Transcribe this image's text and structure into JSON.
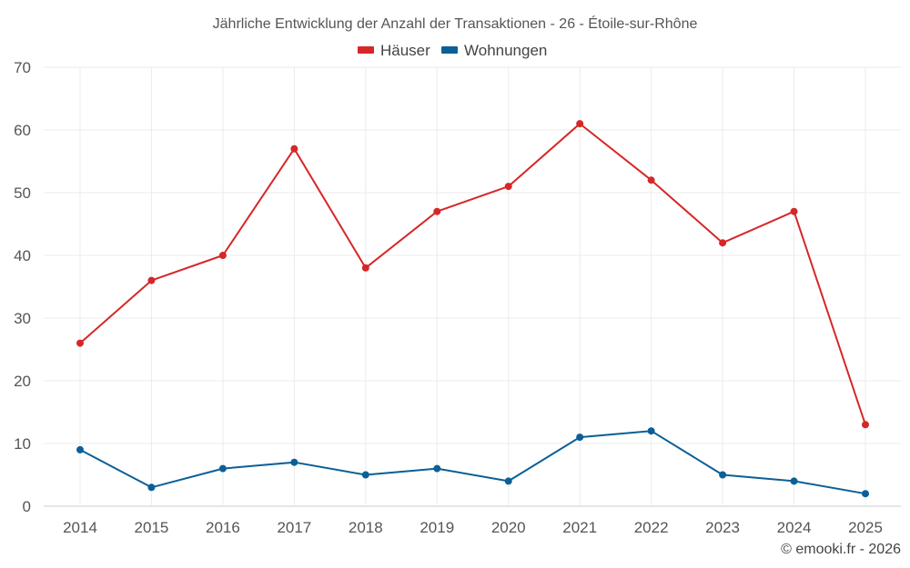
{
  "chart_data": {
    "type": "line",
    "title": "Jährliche Entwicklung der Anzahl der Transaktionen - 26 - Étoile-sur-Rhône",
    "categories": [
      "2014",
      "2015",
      "2016",
      "2017",
      "2018",
      "2019",
      "2020",
      "2021",
      "2022",
      "2023",
      "2024",
      "2025"
    ],
    "series": [
      {
        "name": "Häuser",
        "color": "#d62728",
        "values": [
          26,
          36,
          40,
          57,
          38,
          47,
          51,
          61,
          52,
          42,
          47,
          13
        ]
      },
      {
        "name": "Wohnungen",
        "color": "#0b5f97",
        "values": [
          9,
          3,
          6,
          7,
          5,
          6,
          4,
          11,
          12,
          5,
          4,
          2
        ]
      }
    ],
    "ylim": [
      0,
      70
    ],
    "yticks": [
      0,
      10,
      20,
      30,
      40,
      50,
      60,
      70
    ],
    "xlabel": "",
    "ylabel": "",
    "grid": true,
    "legend_position": "top-center"
  },
  "credit": "© emooki.fr - 2026"
}
